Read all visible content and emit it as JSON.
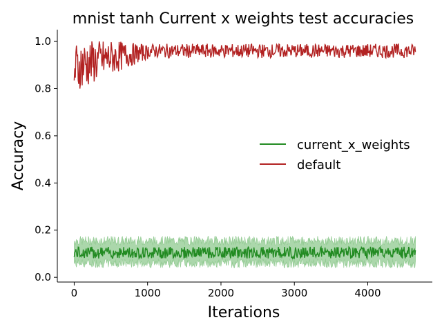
{
  "chart_data": {
    "type": "line",
    "title": "mnist tanh Current x weights test accuracies",
    "xlabel": "Iterations",
    "ylabel": "Accuracy",
    "xlim": [
      -230,
      4880
    ],
    "ylim": [
      -0.02,
      1.05
    ],
    "xticks": [
      0,
      1000,
      2000,
      3000,
      4000
    ],
    "xtick_labels": [
      "0",
      "1000",
      "2000",
      "3000",
      "4000"
    ],
    "yticks": [
      0.0,
      0.2,
      0.4,
      0.6,
      0.8,
      1.0
    ],
    "ytick_labels": [
      "0.0",
      "0.2",
      "0.4",
      "0.6",
      "0.8",
      "1.0"
    ],
    "grid": false,
    "legend_position": "center-right",
    "series": [
      {
        "name": "current_x_weights",
        "color": "#228b22",
        "band_color": "#8fc98f",
        "x_range": [
          0,
          4650
        ],
        "mean_approx": 0.105,
        "band_low_approx": 0.06,
        "band_high_approx": 0.155,
        "values_summary": "oscillates around 0.10 across all iterations with a shaded spread of about 0.05 to 0.17"
      },
      {
        "name": "default",
        "color": "#b22222",
        "x_range": [
          0,
          4650
        ],
        "start_range": [
          0.8,
          0.97
        ],
        "plateau_low_approx": 0.93,
        "plateau_high_approx": 0.99,
        "values_summary": "rises quickly from about 0.85 to a plateau near 0.96 by iteration 1000, noisy between 0.93 and 0.99"
      }
    ]
  }
}
